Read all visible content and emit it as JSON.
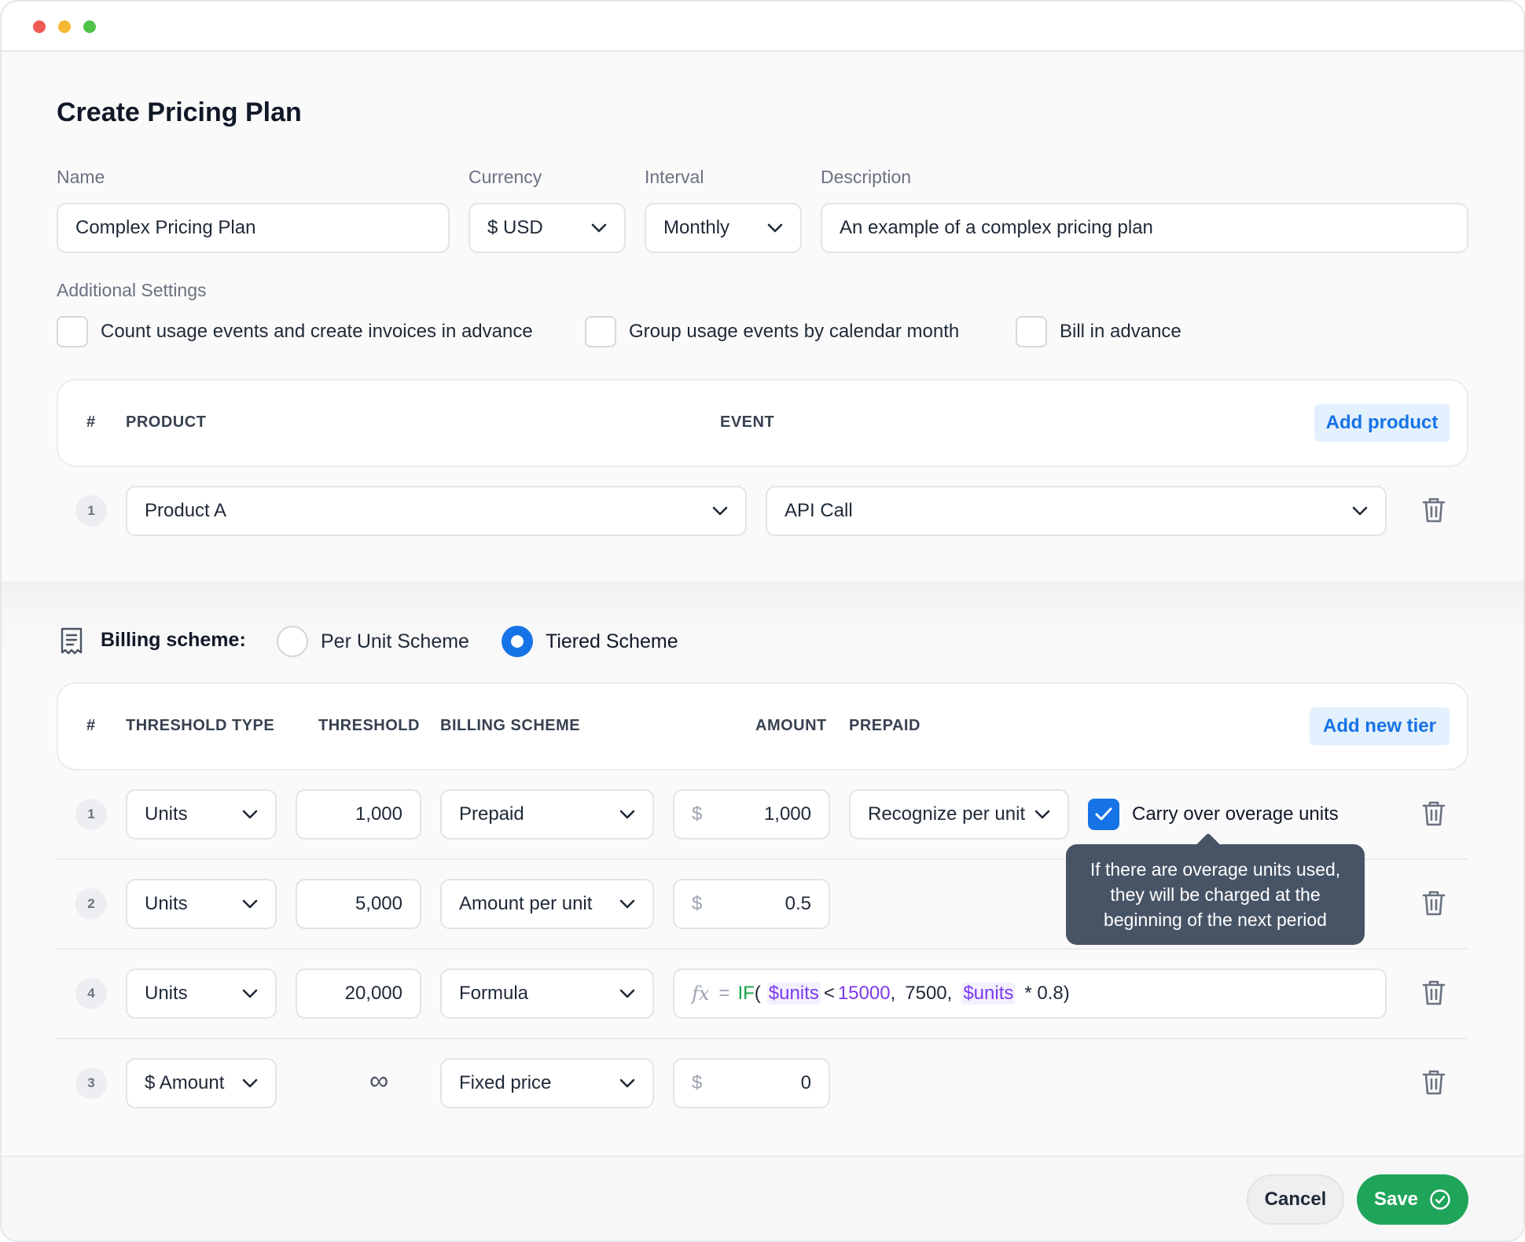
{
  "title": "Create Pricing Plan",
  "form": {
    "name_label": "Name",
    "name_value": "Complex Pricing Plan",
    "currency_label": "Currency",
    "currency_value": "$ USD",
    "interval_label": "Interval",
    "interval_value": "Monthly",
    "description_label": "Description",
    "description_value": "An example of a complex pricing plan"
  },
  "settings": {
    "label": "Additional Settings",
    "options": [
      {
        "label": "Count usage events and create invoices in advance",
        "checked": false
      },
      {
        "label": "Group usage events by calendar month",
        "checked": false
      },
      {
        "label": "Bill in advance",
        "checked": false
      }
    ]
  },
  "products": {
    "headers": {
      "num": "#",
      "product": "PRODUCT",
      "event": "EVENT"
    },
    "add_label": "Add product",
    "rows": [
      {
        "num": "1",
        "product": "Product A",
        "event": "API Call"
      }
    ]
  },
  "billing": {
    "label": "Billing scheme:",
    "options": [
      {
        "label": "Per Unit Scheme",
        "selected": false
      },
      {
        "label": "Tiered Scheme",
        "selected": true
      }
    ]
  },
  "tiers": {
    "headers": {
      "num": "#",
      "threshold_type": "THRESHOLD TYPE",
      "threshold": "THRESHOLD",
      "billing_scheme": "BILLING SCHEME",
      "amount": "AMOUNT",
      "prepaid": "PREPAID"
    },
    "add_label": "Add new tier",
    "currency_symbol": "$",
    "rows": [
      {
        "num": "1",
        "type": "Units",
        "threshold": "1,000",
        "scheme": "Prepaid",
        "amount": "1,000",
        "prepaid": "Recognize per unit",
        "carry_over_label": "Carry over overage units",
        "carry_over_checked": true
      },
      {
        "num": "2",
        "type": "Units",
        "threshold": "5,000",
        "scheme": "Amount per unit",
        "amount": "0.5"
      },
      {
        "num": "4",
        "type": "Units",
        "threshold": "20,000",
        "scheme": "Formula",
        "formula": {
          "fx": "fx",
          "eq": "=",
          "fn": "IF",
          "open": "(",
          "var1": "$units",
          "op": "<",
          "num1": "15000",
          "comma1": ",",
          "val": "7500",
          "comma2": ",",
          "var2": "$units",
          "rest": "* 0.8)"
        }
      },
      {
        "num": "3",
        "type": "$ Amount",
        "threshold": "∞",
        "scheme": "Fixed price",
        "amount": "0"
      }
    ]
  },
  "tooltip": {
    "line1": "If there are overage units used,",
    "line2": "they will be charged at the",
    "line3": "beginning of the next period"
  },
  "footer": {
    "cancel": "Cancel",
    "save": "Save"
  },
  "colors": {
    "accent": "#1673e6",
    "save": "#1fa55a",
    "tooltip": "#475466"
  }
}
